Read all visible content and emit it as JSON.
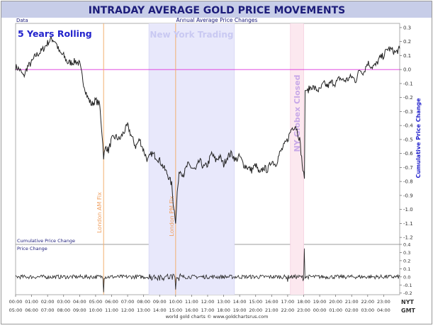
{
  "header": {
    "title": "INTRADAY AVERAGE GOLD PRICE MOVEMENTS",
    "subtitle": "Annual Average Price Changes",
    "data_label": "Data"
  },
  "top_panel": {
    "corner_label": "5 Years Rolling",
    "bottom_label": "Cumulative Price Change",
    "y_axis_title": "Cumulative Price Change",
    "ylim": [
      -1.25,
      0.33
    ],
    "y_ticks": [
      "0.3",
      "0.2",
      "0.1",
      "0.0",
      "-0.1",
      "-0.2",
      "-0.3",
      "-0.4",
      "-0.5",
      "-0.6",
      "-0.7",
      "-0.8",
      "-0.9",
      "-1.0",
      "-1.1",
      "-1.2"
    ]
  },
  "bottom_panel": {
    "title": "Price Change",
    "ylim": [
      -0.22,
      0.4
    ],
    "y_ticks": [
      "0.4",
      "0.3",
      "0.2",
      "0.1",
      "0.0",
      "-0.1",
      "-0.2"
    ]
  },
  "sessions": [
    {
      "label": "New York Trading",
      "start": 8.33,
      "end": 13.67,
      "color": "#e8e8fb"
    },
    {
      "label": "NY Globex Closed",
      "start": 17.17,
      "end": 18.0,
      "color": "#fce8ef"
    }
  ],
  "fixes": [
    {
      "label": "London AM Fix",
      "x": 5.5
    },
    {
      "label": "London PM Fix",
      "x": 10.0
    }
  ],
  "x_axis": {
    "nyt_label": "NYT",
    "gmt_label": "GMT",
    "nyt_ticks": [
      "00:00",
      "01:00",
      "02:00",
      "03:00",
      "04:00",
      "05:00",
      "06:00",
      "07:00",
      "08:00",
      "09:00",
      "10:00",
      "11:00",
      "12:00",
      "13:00",
      "14:00",
      "15:00",
      "16:00",
      "17:00",
      "18:00",
      "19:00",
      "20:00",
      "21:00",
      "22:00",
      "23:00"
    ],
    "gmt_ticks": [
      "05:00",
      "06:00",
      "07:00",
      "08:00",
      "09:00",
      "10:00",
      "11:00",
      "12:00",
      "13:00",
      "14:00",
      "15:00",
      "16:00",
      "17:00",
      "18:00",
      "19:00",
      "20:00",
      "21:00",
      "22:00",
      "23:00",
      "00:00",
      "01:00",
      "02:00",
      "03:00",
      "04:00"
    ]
  },
  "footer": {
    "credit": "world gold charts © www.goldchartsrus.com"
  },
  "colors": {
    "title_bar": "#c7cde8",
    "title_text": "#1c1c7a",
    "series": "#222222",
    "zero_line": "#dd33dd",
    "fix_line": "#f2b070",
    "fix_text": "#f0a060",
    "session_ny_text": "#c9c9f2",
    "session_globex_text": "#c8a8e8",
    "axis_title": "#2222cc"
  },
  "chart_data": {
    "type": "line",
    "title": "INTRADAY AVERAGE GOLD PRICE MOVEMENTS",
    "subtitle": "Annual Average Price Changes",
    "x_unit": "hour (NYT)",
    "xlim": [
      0,
      24
    ],
    "series": [
      {
        "name": "Cumulative Price Change",
        "x": [
          0,
          0.25,
          0.5,
          0.75,
          1.0,
          1.25,
          1.5,
          1.75,
          2.0,
          2.25,
          2.5,
          2.75,
          3.0,
          3.25,
          3.5,
          3.75,
          4.0,
          4.25,
          4.5,
          4.75,
          5.0,
          5.25,
          5.4,
          5.5,
          5.65,
          5.8,
          6.0,
          6.25,
          6.5,
          6.75,
          7.0,
          7.25,
          7.5,
          7.75,
          8.0,
          8.25,
          8.5,
          8.75,
          9.0,
          9.25,
          9.5,
          9.75,
          9.85,
          10.0,
          10.1,
          10.25,
          10.5,
          10.75,
          11.0,
          11.25,
          11.5,
          11.75,
          12.0,
          12.25,
          12.5,
          12.75,
          13.0,
          13.25,
          13.5,
          13.75,
          14.0,
          14.25,
          14.5,
          14.75,
          15.0,
          15.25,
          15.5,
          15.75,
          16.0,
          16.25,
          16.5,
          16.75,
          17.0,
          17.25,
          17.5,
          17.75,
          17.95,
          18.05,
          18.25,
          18.5,
          18.75,
          19.0,
          19.25,
          19.5,
          19.75,
          20.0,
          20.25,
          20.5,
          20.75,
          21.0,
          21.25,
          21.5,
          21.75,
          22.0,
          22.25,
          22.5,
          22.75,
          23.0,
          23.25,
          23.5,
          23.75,
          24.0
        ],
        "y": [
          0.02,
          0.0,
          -0.05,
          0.02,
          0.05,
          0.1,
          0.12,
          0.15,
          0.19,
          0.22,
          0.2,
          0.12,
          0.1,
          0.05,
          0.05,
          0.06,
          0.04,
          -0.1,
          -0.2,
          -0.25,
          -0.22,
          -0.25,
          -0.45,
          -0.62,
          -0.55,
          -0.58,
          -0.5,
          -0.48,
          -0.5,
          -0.45,
          -0.4,
          -0.48,
          -0.55,
          -0.5,
          -0.58,
          -0.65,
          -0.6,
          -0.62,
          -0.65,
          -0.7,
          -0.75,
          -0.82,
          -0.95,
          -1.08,
          -0.88,
          -0.72,
          -0.75,
          -0.68,
          -0.7,
          -0.72,
          -0.65,
          -0.7,
          -0.68,
          -0.6,
          -0.65,
          -0.62,
          -0.68,
          -0.62,
          -0.6,
          -0.65,
          -0.62,
          -0.68,
          -0.7,
          -0.72,
          -0.68,
          -0.75,
          -0.7,
          -0.72,
          -0.65,
          -0.68,
          -0.6,
          -0.55,
          -0.5,
          -0.42,
          -0.4,
          -0.5,
          -0.72,
          -0.78,
          -0.15,
          -0.12,
          -0.14,
          -0.15,
          -0.1,
          -0.12,
          -0.09,
          -0.1,
          -0.06,
          -0.08,
          -0.07,
          -0.05,
          -0.08,
          0.0,
          -0.02,
          0.05,
          0.02,
          0.03,
          0.08,
          0.1,
          0.15,
          0.14,
          0.12,
          0.15
        ]
      },
      {
        "name": "Price Change",
        "x": [
          5.5,
          10.0,
          17.0,
          17.95,
          18.05
        ],
        "y": [
          -0.19,
          -0.16,
          -0.06,
          -0.05,
          0.35
        ],
        "note": "spikes; remaining intervals fluctuate near 0.0"
      }
    ]
  }
}
